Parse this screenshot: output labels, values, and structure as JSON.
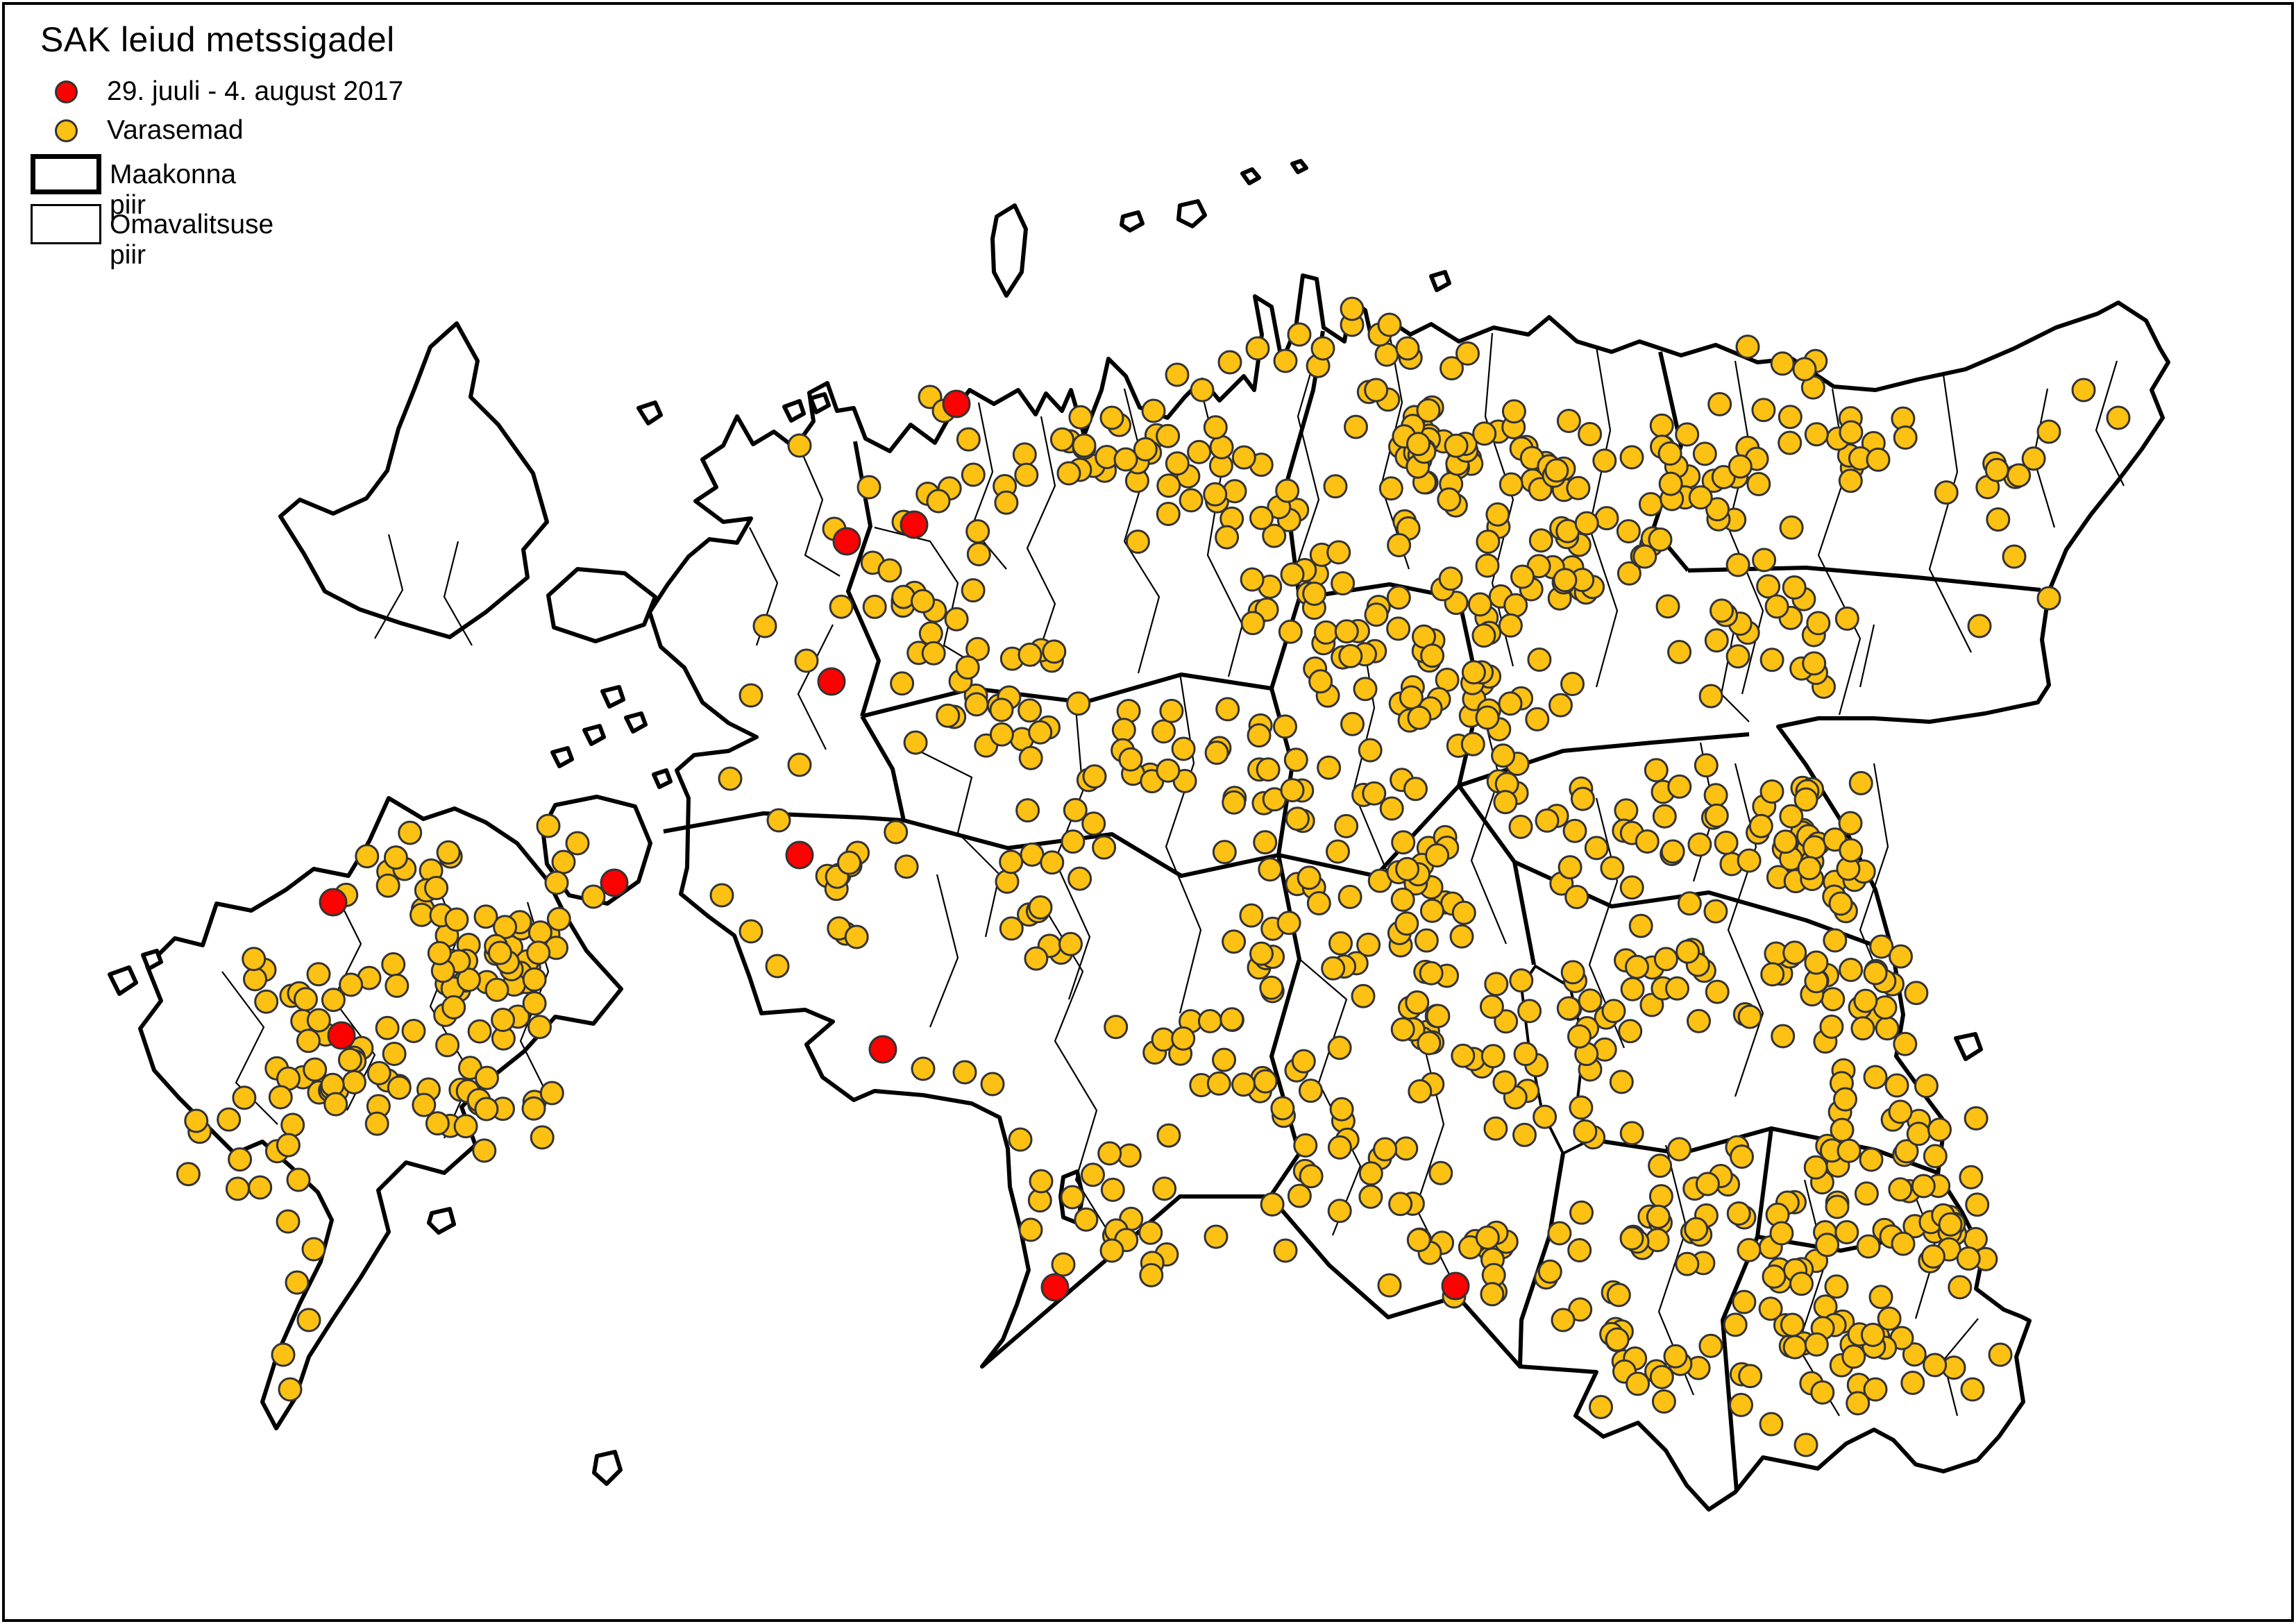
{
  "legend": {
    "title": "SAK leiud metssigadel",
    "items": [
      {
        "type": "point",
        "label": "29. juuli - 4. august 2017"
      },
      {
        "type": "point",
        "label": "Varasemad"
      },
      {
        "type": "box-thick",
        "label": "Maakonna piir"
      },
      {
        "type": "box-thin",
        "label": "Omavalitsuse piir"
      }
    ]
  },
  "colors": {
    "recent_point": "#ff0000",
    "earlier_point": "#fdc113",
    "point_outline": "#333333",
    "border": "#000000",
    "background": "#ffffff"
  },
  "map_data": {
    "type": "point-map",
    "region": "Estonia",
    "seed": 20170804,
    "dot_radius": {
      "orange": 16,
      "red": 19
    },
    "red_points": [
      [
        1378,
        582
      ],
      [
        1317,
        756
      ],
      [
        1220,
        780
      ],
      [
        1198,
        982
      ],
      [
        1152,
        1232
      ],
      [
        885,
        1272
      ],
      [
        480,
        1300
      ],
      [
        492,
        1492
      ],
      [
        1272,
        1512
      ],
      [
        1520,
        1855
      ],
      [
        2097,
        1853
      ]
    ],
    "orange_points": [
      [
        1340,
        572
      ],
      [
        1360,
        592
      ],
      [
        1812,
        502
      ],
      [
        1852,
        520
      ],
      [
        1872,
        482
      ],
      [
        1906,
        502
      ],
      [
        1948,
        468
      ],
      [
        1988,
        482
      ],
      [
        2028,
        502
      ],
      [
        1772,
        522
      ],
      [
        1732,
        562
      ],
      [
        1696,
        540
      ],
      [
        1948,
        445
      ],
      [
        2002,
        468
      ],
      [
        1562,
        642
      ],
      [
        1602,
        602
      ],
      [
        1622,
        662
      ],
      [
        1662,
        592
      ],
      [
        1540,
        682
      ],
      [
        1252,
        702
      ],
      [
        1302,
        752
      ],
      [
        1352,
        722
      ],
      [
        1282,
        822
      ],
      [
        1202,
        762
      ],
      [
        1152,
        642
      ],
      [
        1102,
        902
      ],
      [
        1162,
        952
      ],
      [
        1082,
        1002
      ],
      [
        1152,
        1102
      ],
      [
        1052,
        1122
      ],
      [
        1122,
        1182
      ],
      [
        1082,
        1342
      ],
      [
        1040,
        1290
      ],
      [
        1120,
        1392
      ],
      [
        1330,
        1540
      ],
      [
        1390,
        1545
      ],
      [
        1430,
        1562
      ],
      [
        1470,
        1642
      ],
      [
        1500,
        1702
      ],
      [
        1485,
        1772
      ],
      [
        1532,
        1822
      ],
      [
        1545,
        1725
      ],
      [
        430,
        1700
      ],
      [
        415,
        1760
      ],
      [
        452,
        1800
      ],
      [
        428,
        1848
      ],
      [
        445,
        1902
      ],
      [
        408,
        1952
      ],
      [
        418,
        2002
      ],
      [
        790,
        1190
      ],
      [
        812,
        1242
      ],
      [
        832,
        1215
      ],
      [
        802,
        1272
      ],
      [
        855,
        1292
      ],
      [
        3002,
        562
      ],
      [
        3052,
        602
      ],
      [
        2952,
        622
      ],
      [
        2902,
        802
      ],
      [
        2952,
        862
      ],
      [
        2852,
        902
      ],
      [
        2602,
        1152
      ],
      [
        2652,
        1302
      ],
      [
        2702,
        1402
      ],
      [
        2702,
        1552
      ],
      [
        2738,
        1602
      ],
      [
        1602,
        1802
      ],
      [
        1752,
        1782
      ],
      [
        1852,
        1802
      ],
      [
        2002,
        1852
      ],
      [
        2252,
        1902
      ],
      [
        2552,
        2052
      ],
      [
        2702,
        2002
      ],
      [
        2602,
        2082
      ],
      [
        2882,
        1952
      ],
      [
        2842,
        2002
      ]
    ],
    "orange_clusters": [
      [
        2080,
        640,
        240,
        150,
        62
      ],
      [
        1980,
        900,
        220,
        170,
        40
      ],
      [
        2260,
        790,
        190,
        140,
        36
      ],
      [
        1755,
        710,
        170,
        130,
        26
      ],
      [
        1590,
        650,
        110,
        90,
        12
      ],
      [
        1395,
        705,
        115,
        100,
        10
      ],
      [
        1305,
        885,
        130,
        110,
        13
      ],
      [
        1430,
        1005,
        170,
        120,
        22
      ],
      [
        1650,
        1100,
        190,
        140,
        26
      ],
      [
        1905,
        1150,
        190,
        140,
        28
      ],
      [
        2150,
        1000,
        170,
        130,
        26
      ],
      [
        2420,
        690,
        190,
        150,
        30
      ],
      [
        2650,
        610,
        170,
        130,
        22
      ],
      [
        2890,
        705,
        110,
        90,
        8
      ],
      [
        2550,
        905,
        190,
        140,
        22
      ],
      [
        2300,
        1160,
        190,
        130,
        26
      ],
      [
        2550,
        1205,
        190,
        140,
        30
      ],
      [
        2400,
        1405,
        190,
        140,
        32
      ],
      [
        2650,
        1450,
        170,
        130,
        30
      ],
      [
        2690,
        1695,
        190,
        140,
        40
      ],
      [
        2450,
        1750,
        190,
        150,
        36
      ],
      [
        2650,
        1945,
        200,
        120,
        40
      ],
      [
        2800,
        1790,
        80,
        90,
        14
      ],
      [
        2255,
        1545,
        140,
        120,
        20
      ],
      [
        2050,
        1450,
        170,
        140,
        26
      ],
      [
        1950,
        1655,
        170,
        140,
        26
      ],
      [
        2140,
        1820,
        140,
        100,
        20
      ],
      [
        1700,
        1500,
        170,
        140,
        18
      ],
      [
        1610,
        1745,
        160,
        130,
        16
      ],
      [
        1500,
        1300,
        140,
        120,
        14
      ],
      [
        2350,
        1945,
        130,
        100,
        18
      ],
      [
        2620,
        1230,
        80,
        100,
        12
      ],
      [
        2050,
        1255,
        140,
        110,
        16
      ],
      [
        1855,
        1350,
        140,
        110,
        16
      ],
      [
        655,
        1400,
        170,
        120,
        40
      ],
      [
        510,
        1550,
        150,
        110,
        26
      ],
      [
        700,
        1590,
        110,
        90,
        16
      ],
      [
        360,
        1650,
        110,
        90,
        12
      ],
      [
        560,
        1260,
        110,
        80,
        12
      ],
      [
        430,
        1450,
        100,
        90,
        12
      ],
      [
        760,
        1380,
        60,
        80,
        14
      ],
      [
        1220,
        1270,
        100,
        110,
        12
      ]
    ]
  },
  "map_geometry": {
    "land": [
      "M1062,600 L1085,640 L1115,622 L1145,645 L1172,607 L1166,566 L1192,552 L1206,592 L1230,588 L1247,632 L1282,650 L1312,612 L1347,638 L1367,602 L1397,562 L1432,582 L1467,562 L1492,597 L1507,567 L1530,592 L1543,562 L1562,627 L1587,562 L1597,517 L1622,542 L1642,587 L1682,602 L1707,572 L1732,547 L1757,577 L1792,542 L1807,562 L1818,482 L1808,427 L1832,442 L1847,522 L1867,472 L1877,397 L1897,402 L1907,472 L1937,492 L1947,432 L1967,447 L1977,492 L2002,462 L2032,482 L2062,467 L2102,492 L2152,472 L2202,482 L2232,457 L2272,492 L2322,507 L2362,492 L2422,512 L2472,497 L2532,522 L2582,517 L2642,557 L2702,562 L2762,547 L2832,532 L2902,502 L2962,472 L3022,452 L3052,436 L3092,462 L3112,502 L3124,522 L3100,562 L3116,602 L3086,647 L3052,692 L3012,742 L2977,792 L2952,852 L2942,922 L2952,987 L2936,1012 L2860,1028 L2780,1040 L2700,1035 L2620,1035 L2562,1047 L2602,1102 L2652,1182 L2702,1282 L2727,1372 L2742,1462 L2732,1522 L2772,1577 L2802,1617 L2792,1692 L2827,1747 L2857,1807 L2847,1857 L2887,1887 L2912,1897 L2924,1903 L2905,1955 L2915,2020 L2880,2070 L2849,2104 L2800,2120 L2760,2110 L2728,2075 L2700,2060 L2660,2080 L2619,2116 L2590,2110 L2540,2100 L2500,2150 L2462,2175 L2430,2140 L2400,2090 L2360,2050 L2310,2070 L2270,2040 L2300,1977 L2190,1969 L2100,1868 L2000,1898 L1915,1823 L1830,1724 L1700,1724 L1415,1969 L1445,1930 L1465,1880 L1482,1830 L1470,1770 L1455,1710 L1452,1655 L1440,1610 L1400,1590 L1330,1578 L1260,1572 L1230,1585 L1185,1552 L1162,1505 L1200,1472 L1160,1455 L1097,1460 L1080,1408 L1058,1348 L1020,1320 L981,1288 L990,1250 L992,1150 L975,1110 L1000,1088 L1050,1082 L1090,1062 L1050,1042 L1012,1012 L986,962 L952,932 L936,882 L962,842 L992,802 L1022,777 L1062,782 L1082,747 L1042,752 L1002,722 L1032,702 L1012,662 L1042,642 Z",
      "M560,1150 L610,1180 L655,1165 L700,1185 L745,1215 L790,1270 L815,1320 L845,1370 L895,1425 L855,1475 L800,1465 L755,1515 L705,1555 L665,1595 L685,1650 L640,1690 L585,1675 L545,1715 L560,1775 L520,1840 L480,1900 L445,1955 L425,2015 L398,2058 L378,2020 L400,1950 L432,1878 L462,1818 L478,1758 L458,1718 L420,1682 L378,1645 L338,1662 L298,1622 L258,1582 L222,1542 L202,1482 L232,1442 L212,1392 L252,1352 L292,1362 L312,1302 L362,1312 L412,1282 L452,1252 L502,1262 L532,1212 Z",
      "M800,1160 L860,1148 L915,1162 L937,1215 L920,1270 L875,1302 L820,1290 L788,1245 L782,1195 Z",
      "M658,466 L688,520 L678,572 L718,612 L768,682 L788,752 L754,792 L760,832 L700,882 L648,918 L578,898 L518,878 L468,852 L438,798 L404,744 L432,720 L480,740 L528,718 L558,678 L574,618 L598,558 L620,500 Z",
      "M790,858 L832,820 L900,826 L944,860 L928,900 L858,924 L798,904 Z",
      "M1532,1696 L1552,1688 L1560,1724 L1552,1762 L1532,1754 L1528,1724 Z",
      "M860,2098 L886,2092 L894,2118 L874,2138 L856,2122 Z",
      "M622,1748 L648,1742 L654,1764 L632,1776 L618,1762 Z",
      "M1436,312 L1462,296 L1478,330 L1472,392 L1450,426 L1432,392 L1430,344 Z",
      "M1700,296 L1726,290 L1736,310 L1718,326 L1698,316 Z",
      "M1618,312 L1640,306 L1646,322 L1628,332 L1616,324 Z",
      "M920,588 L944,580 L952,598 L934,610 Z",
      "M1130,586 L1152,578 L1158,596 L1140,606 Z",
      "M1168,574 L1188,568 L1194,584 L1176,594 Z",
      "M158,1404 L186,1394 L196,1416 L172,1432 Z",
      "M206,1376 L226,1370 L232,1386 L214,1396 Z",
      "M2818,1496 L2846,1490 L2854,1512 L2832,1526 Z",
      "M868,996 L892,990 L898,1008 L878,1018 Z",
      "M902,1034 L924,1028 L930,1044 L912,1054 Z",
      "M842,1052 L864,1046 L870,1062 L852,1072 Z",
      "M796,1084 L818,1078 L824,1094 L806,1104 Z",
      "M942,1116 L960,1110 L966,1126 L950,1134 Z",
      "M2062,398 L2082,392 L2088,408 L2070,418 Z",
      "M1790,250 L1804,244 L1814,256 L1800,264 Z",
      "M1862,236 L1874,232 L1882,242 L1870,248 Z"
    ],
    "county_borders": [
      "M1232,636 L1254,758 L1222,852 L1266,952 L1242,1032",
      "M956,1198 L1100,1172 L1242,1178 L1302,1182",
      "M1242,1032 L1402,992 L1562,1012 L1702,972 L1832,992",
      "M1832,992 L1872,862 L1852,702 L1892,562 L1906,477",
      "M1832,992 L1862,1102 L1842,1232",
      "M1872,862 L2002,842 L2102,862",
      "M2102,862 L2132,1002 L2102,1132",
      "M2392,507 L2422,642 L2382,762 L2432,822",
      "M2432,822 L2602,818 L2762,832 L2940,850",
      "M2102,1132 L2252,1082 L2380,1070 L2520,1058",
      "M1302,1182 L1452,1222 L1602,1202 L1702,1262 L1842,1232",
      "M1842,1232 L1982,1262 L2102,1132",
      "M1842,1232 L1872,1382 L1832,1522 L1872,1662 L1830,1724",
      "M2102,1132 L2182,1242 L2210,1390",
      "M2252,1662 L2232,1782 L2192,1902 L2190,1969",
      "M2182,1242 L2322,1306 L2462,1286 L2602,1326 L2727,1372",
      "M2292,1642 L2422,1662 L2552,1626 L2702,1657 L2792,1690",
      "M2552,1626 L2532,1782 L2482,1902 L2502,2148",
      "M2532,1782 L2652,1802 L2752,1782 L2827,1747",
      "M1242,1032 L1286,1108 L1302,1182"
    ],
    "municipal_borders": [
      "M1150,640 L1185,720 L1160,800 L1210,830",
      "M1260,760 L1340,780 L1380,840 L1360,930 L1410,960",
      "M1410,580 L1430,680 L1400,760 L1450,820",
      "M1500,600 L1520,700 L1480,790 L1520,870 L1490,960",
      "M1620,560 L1650,680 L1620,780 L1670,860 L1640,970",
      "M1730,560 L1760,680 L1740,800 L1790,900 L1770,975",
      "M1905,480 L1870,600 L1900,720 L1860,840",
      "M2000,470 L2020,580 L1990,700 L2030,820",
      "M2150,480 L2140,600 L2180,720 L2150,840 L2180,960",
      "M2300,500 L2320,620 L2290,760 L2330,880 L2300,990",
      "M2500,520 L2520,640 L2490,760 L2540,880 L2510,1000",
      "M2640,560 L2660,680 L2620,800 L2680,920 L2650,1030",
      "M2800,540 L2820,680 L2780,820 L2840,940",
      "M1320,1080 L1400,1120 L1380,1200 L1440,1260 L1420,1350",
      "M1550,1020 L1560,1140 L1520,1240 L1570,1350 L1540,1440",
      "M1700,970 L1720,1100 L1680,1220 L1730,1340 L1700,1460",
      "M1960,900 L1980,1020 L1950,1140 L2000,1260",
      "M2130,1000 L2160,1120 L2120,1240 L2170,1360",
      "M2300,1150 L2330,1270 L2290,1390 L2340,1510",
      "M2500,1100 L2530,1220 L2490,1340 L2540,1460 L2500,1580",
      "M2700,1100 L2720,1220 L2680,1340 L2730,1460",
      "M1870,1380 L1940,1440 L1900,1560 L1960,1680 L1920,1780",
      "M2050,1500 L2080,1620 L2040,1740 L2100,1860",
      "M2400,1650 L2430,1770 L2390,1890 L2440,2010",
      "M2600,1700 L2630,1820 L2590,1940 L2650,2040",
      "M2750,1700 L2790,1800 L2760,1900",
      "M1500,1300 L1560,1400 L1520,1500 L1580,1600 L1550,1700 L1600,1780",
      "M1350,1260 L1380,1380 L1340,1480",
      "M480,1280 L520,1360 L480,1440 L540,1520 L500,1600",
      "M620,1250 L660,1350 L620,1450 L680,1550 L640,1640",
      "M760,1300 L790,1400 L750,1500 L790,1580",
      "M320,1400 L380,1480 L340,1560 L400,1620",
      "M560,770 L580,850 L540,920",
      "M660,780 L640,860 L680,930",
      "M2850,1900 L2800,1960 L2820,2040",
      "M1200,900 L1150,1000 L1190,1080",
      "M1080,760 L1120,840 L1090,930",
      "M2950,560 L2930,660 L2960,760",
      "M3050,520 L3020,620 L3060,700",
      "M2450,1070 L2470,1170 L2440,1270",
      "M2500,900 L2480,1000 L2520,1040",
      "M2700,900 L2680,990"
    ],
    "lakes": [
      "M2212,1392 L2262,1422 L2282,1502 L2272,1592 L2292,1642 L2252,1662 L2222,1602 L2202,1502 L2192,1422 Z"
    ]
  }
}
